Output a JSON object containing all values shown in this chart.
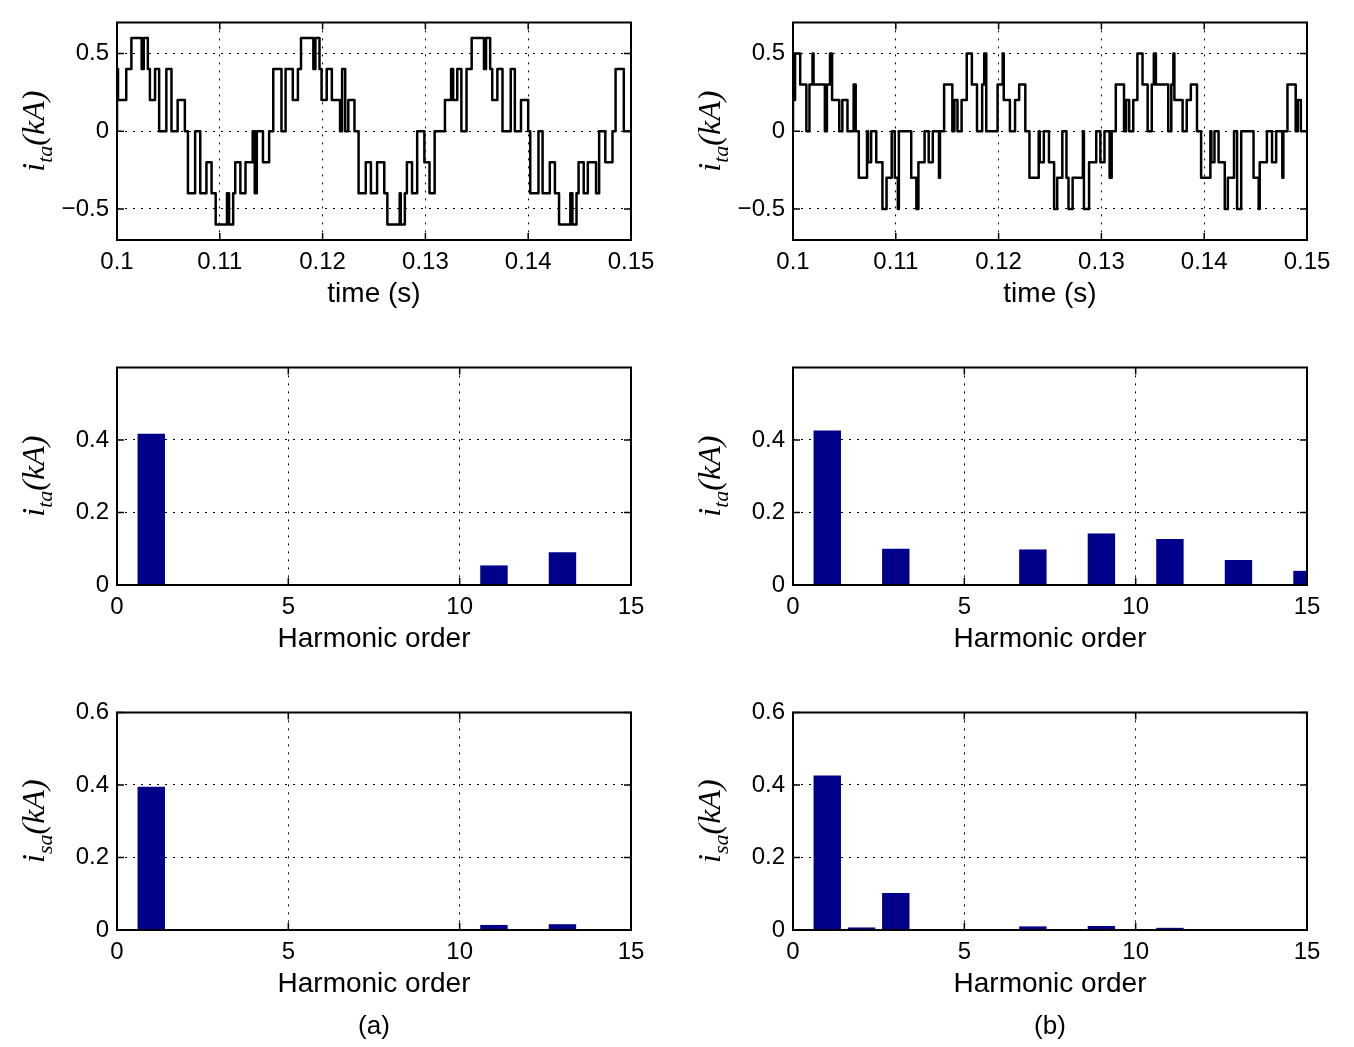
{
  "chart_data": [
    {
      "type": "step",
      "xlabel": "time (s)",
      "ylabel": "i$_{ta}$(kA)",
      "xlim": [
        0.1,
        0.15
      ],
      "xticks": [
        0.1,
        0.11,
        0.12,
        0.13,
        0.14,
        0.15
      ],
      "ylim": [
        -0.7,
        0.7
      ],
      "yticks": [
        {
          "value": -0.5,
          "label": "−0.5"
        },
        0,
        0.5
      ],
      "grid": true,
      "color": "#000000",
      "x": [
        0.1,
        0.1001,
        0.1009,
        0.1014,
        0.1024,
        0.1026,
        0.103,
        0.1032,
        0.1037,
        0.1041,
        0.1048,
        0.1053,
        0.1059,
        0.1066,
        0.1069,
        0.1076,
        0.1081,
        0.1087,
        0.1092,
        0.1096,
        0.1107,
        0.1109,
        0.1113,
        0.1115,
        0.112,
        0.1125,
        0.1132,
        0.1134,
        0.1136,
        0.1142,
        0.1148,
        0.1152,
        0.116,
        0.1164,
        0.1171,
        0.1176,
        0.1179,
        0.1191,
        0.1193,
        0.1197,
        0.1199,
        0.1204,
        0.1209,
        0.1217,
        0.1219,
        0.1222,
        0.1225,
        0.1231,
        0.1235,
        0.1242,
        0.1247,
        0.1253,
        0.126,
        0.1263,
        0.1275,
        0.1276,
        0.128,
        0.1282,
        0.1287,
        0.1292,
        0.1299,
        0.1304,
        0.1309,
        0.1319,
        0.1325,
        0.1327,
        0.1331,
        0.1335,
        0.134,
        0.1345,
        0.1357,
        0.1359,
        0.1363,
        0.1365,
        0.137,
        0.1375,
        0.1383,
        0.1387,
        0.1393,
        0.14,
        0.1402,
        0.141,
        0.1414,
        0.1421,
        0.1426,
        0.143,
        0.1441,
        0.1443,
        0.1447,
        0.1449,
        0.1454,
        0.1458,
        0.1466,
        0.1469,
        0.1475,
        0.1482,
        0.1485,
        0.1493,
        0.1497,
        0.15
      ],
      "values": [
        0,
        0.4,
        0.2,
        0.4,
        0.6,
        0.4,
        0.6,
        0.4,
        0.2,
        0.4,
        0,
        0.4,
        0,
        0.2,
        0,
        -0.4,
        0,
        -0.4,
        -0.2,
        -0.4,
        -0.6,
        -0.4,
        -0.6,
        -0.4,
        -0.2,
        -0.4,
        -0.2,
        0,
        -0.4,
        0,
        -0.2,
        0,
        0.4,
        0,
        0.4,
        0.2,
        0.4,
        0.6,
        0.4,
        0.6,
        0.4,
        0.2,
        0.4,
        0.2,
        0,
        0.4,
        0,
        0.2,
        0,
        -0.4,
        -0.2,
        -0.4,
        -0.2,
        -0.4,
        -0.6,
        -0.4,
        -0.6,
        -0.4,
        -0.2,
        -0.4,
        0,
        -0.2,
        -0.4,
        0,
        0.2,
        0.4,
        0.2,
        0.4,
        0,
        0.4,
        0.6,
        0.4,
        0.6,
        0.4,
        0.2,
        0.4,
        0,
        0.4,
        0,
        0.2,
        0,
        -0.4,
        0,
        -0.4,
        -0.2,
        -0.4,
        -0.6,
        -0.4,
        -0.6,
        -0.4,
        -0.2,
        -0.4,
        -0.2,
        -0.4,
        0,
        -0.2,
        0,
        0.4,
        0,
        0
      ]
    },
    {
      "type": "step",
      "xlabel": "time (s)",
      "ylabel": "i$_{ta}$(kA)",
      "xlim": [
        0.1,
        0.15
      ],
      "xticks": [
        0.1,
        0.11,
        0.12,
        0.13,
        0.14,
        0.15
      ],
      "ylim": [
        -0.7,
        0.7
      ],
      "yticks": [
        {
          "value": -0.5,
          "label": "−0.5"
        },
        0,
        0.5
      ],
      "grid": true,
      "color": "#000000",
      "x": [
        0.1,
        0.1002,
        0.1007,
        0.1013,
        0.1016,
        0.1019,
        0.102,
        0.1031,
        0.1033,
        0.1036,
        0.1038,
        0.1045,
        0.1048,
        0.1053,
        0.1059,
        0.1061,
        0.1064,
        0.1072,
        0.1073,
        0.1076,
        0.1081,
        0.1087,
        0.1091,
        0.1096,
        0.1099,
        0.1102,
        0.1103,
        0.1115,
        0.112,
        0.1122,
        0.1128,
        0.1132,
        0.1136,
        0.1142,
        0.1143,
        0.1147,
        0.1155,
        0.1157,
        0.116,
        0.1164,
        0.1169,
        0.1174,
        0.1179,
        0.1184,
        0.1186,
        0.1188,
        0.1199,
        0.1204,
        0.1205,
        0.1211,
        0.1216,
        0.122,
        0.1226,
        0.123,
        0.1239,
        0.124,
        0.1244,
        0.1249,
        0.1254,
        0.1257,
        0.1262,
        0.1266,
        0.1268,
        0.1272,
        0.1282,
        0.1283,
        0.1288,
        0.1295,
        0.1299,
        0.1303,
        0.1308,
        0.131,
        0.1314,
        0.1322,
        0.1324,
        0.1327,
        0.1331,
        0.1335,
        0.134,
        0.1345,
        0.1349,
        0.1351,
        0.1353,
        0.1365,
        0.1368,
        0.137,
        0.1371,
        0.1379,
        0.1383,
        0.1387,
        0.1393,
        0.1397,
        0.1406,
        0.1407,
        0.141,
        0.1414,
        0.142,
        0.1423,
        0.1429,
        0.1432,
        0.1436,
        0.1448,
        0.1453,
        0.1454,
        0.1461,
        0.1466,
        0.147,
        0.1476,
        0.1477,
        0.1481,
        0.1489,
        0.1491,
        0.1494,
        0.1497,
        0.15
      ],
      "values": [
        0,
        0.2,
        0.5,
        0.3,
        0,
        0.3,
        0.5,
        0.3,
        0,
        0.3,
        0.5,
        0.2,
        0,
        0.2,
        0,
        0.3,
        0,
        -0.3,
        0,
        -0.2,
        0,
        -0.2,
        -0.5,
        -0.3,
        0,
        -0.3,
        -0.5,
        0,
        -0.3,
        -0.5,
        -0.2,
        0,
        -0.2,
        0,
        -0.3,
        0,
        0.3,
        0,
        0.2,
        0,
        0.2,
        0.5,
        0.3,
        0,
        0.3,
        0.5,
        0,
        0.3,
        0.5,
        0.2,
        0,
        0.2,
        0.3,
        0,
        -0.3,
        0,
        -0.2,
        0,
        -0.2,
        -0.5,
        -0.3,
        0,
        -0.3,
        -0.5,
        -0.3,
        0,
        -0.5,
        -0.2,
        0,
        -0.2,
        0,
        -0.3,
        0,
        0.3,
        0,
        0.2,
        0,
        0.2,
        0.5,
        0.3,
        0,
        0.3,
        0.5,
        0.3,
        0,
        0.3,
        0.5,
        0.2,
        0,
        0.2,
        0.3,
        0,
        -0.3,
        0,
        -0.2,
        0,
        -0.2,
        -0.5,
        -0.3,
        0,
        -0.5,
        0,
        -0.3,
        -0.5,
        -0.2,
        0,
        -0.2,
        0,
        -0.3,
        0,
        0.3,
        0,
        0.2,
        0,
        0
      ]
    },
    {
      "type": "bar",
      "xlabel": "Harmonic order",
      "ylabel": "i$_{ta}$(kA)",
      "xlim": [
        0,
        15
      ],
      "xticks": [
        0,
        5,
        10,
        15
      ],
      "ylim": [
        0,
        0.6
      ],
      "yticks": [
        0,
        0.2,
        0.4
      ],
      "grid": true,
      "color": "#00008b",
      "x": [
        0,
        1,
        2,
        3,
        4,
        5,
        6,
        7,
        8,
        9,
        10,
        11,
        12,
        13,
        14,
        15
      ],
      "values": [
        0,
        0.417,
        0,
        0,
        0,
        0,
        0,
        0,
        0,
        0,
        0,
        0.054,
        0,
        0.09,
        0,
        0
      ]
    },
    {
      "type": "bar",
      "xlabel": "Harmonic order",
      "ylabel": "i$_{ta}$(kA)",
      "xlim": [
        0,
        15
      ],
      "xticks": [
        0,
        5,
        10,
        15
      ],
      "ylim": [
        0,
        0.6
      ],
      "yticks": [
        0,
        0.2,
        0.4
      ],
      "grid": true,
      "color": "#00008b",
      "x": [
        0,
        1,
        2,
        3,
        4,
        5,
        6,
        7,
        8,
        9,
        10,
        11,
        12,
        13,
        14,
        15
      ],
      "values": [
        0,
        0.426,
        0,
        0.1,
        0,
        0,
        0,
        0.098,
        0,
        0.142,
        0,
        0.127,
        0,
        0.069,
        0,
        0.039
      ]
    },
    {
      "type": "bar",
      "xlabel": "Harmonic order",
      "ylabel": "i$_{sa}$(kA)",
      "xlim": [
        0,
        15
      ],
      "xticks": [
        0,
        5,
        10,
        15
      ],
      "ylim": [
        0,
        0.6
      ],
      "yticks": [
        0,
        0.2,
        0.4,
        0.6
      ],
      "grid": true,
      "color": "#00008b",
      "annotations": [
        "(a)"
      ],
      "x": [
        0,
        1,
        2,
        3,
        4,
        5,
        6,
        7,
        8,
        9,
        10,
        11,
        12,
        13,
        14,
        15
      ],
      "values": [
        0,
        0.395,
        0,
        0,
        0,
        0,
        0,
        0,
        0,
        0,
        0,
        0.014,
        0,
        0.016,
        0,
        0
      ]
    },
    {
      "type": "bar",
      "xlabel": "Harmonic order",
      "ylabel": "i$_{sa}$(kA)",
      "xlim": [
        0,
        15
      ],
      "xticks": [
        0,
        5,
        10,
        15
      ],
      "ylim": [
        0,
        0.6
      ],
      "yticks": [
        0,
        0.2,
        0.4,
        0.6
      ],
      "grid": true,
      "color": "#00008b",
      "annotations": [
        "(b)"
      ],
      "x": [
        0,
        1,
        2,
        3,
        4,
        5,
        6,
        7,
        8,
        9,
        10,
        11,
        12,
        13,
        14,
        15
      ],
      "values": [
        0,
        0.426,
        0.007,
        0.102,
        0,
        0,
        0,
        0.01,
        0,
        0.011,
        0,
        0.006,
        0,
        0,
        0,
        0
      ]
    }
  ]
}
